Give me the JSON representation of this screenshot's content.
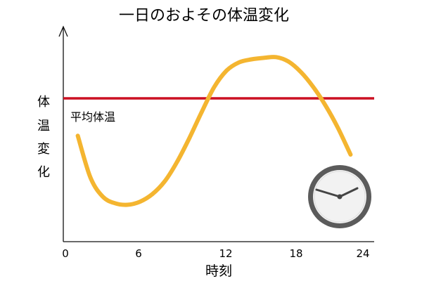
{
  "chart_data": {
    "type": "line",
    "title": "一日のおよその体温変化",
    "xlabel": "時刻",
    "ylabel": [
      "体",
      "温",
      "変",
      "化"
    ],
    "xlim": [
      0,
      24
    ],
    "xticks": [
      "0",
      "6",
      "12",
      "18",
      "24"
    ],
    "ylim": [
      -1.2,
      1.2
    ],
    "series": [
      {
        "color": "#f4b530",
        "x": [
          1,
          2,
          3,
          4,
          5,
          6,
          7,
          8,
          9,
          10,
          11,
          12,
          13,
          14,
          15,
          16,
          17,
          18,
          19,
          20,
          21,
          22,
          23
        ],
        "y": [
          -0.05,
          -0.6,
          -0.86,
          -0.95,
          -0.97,
          -0.93,
          -0.83,
          -0.66,
          -0.4,
          -0.08,
          0.27,
          0.6,
          0.82,
          0.93,
          0.97,
          0.99,
          1.0,
          0.94,
          0.8,
          0.6,
          0.35,
          0.05,
          -0.3
        ]
      }
    ],
    "reference_line": {
      "label": "平均体温",
      "y": 0.45,
      "color": "#cc1122"
    },
    "grid": false,
    "legend": "none"
  },
  "icons": {
    "clock": "clock-icon"
  }
}
